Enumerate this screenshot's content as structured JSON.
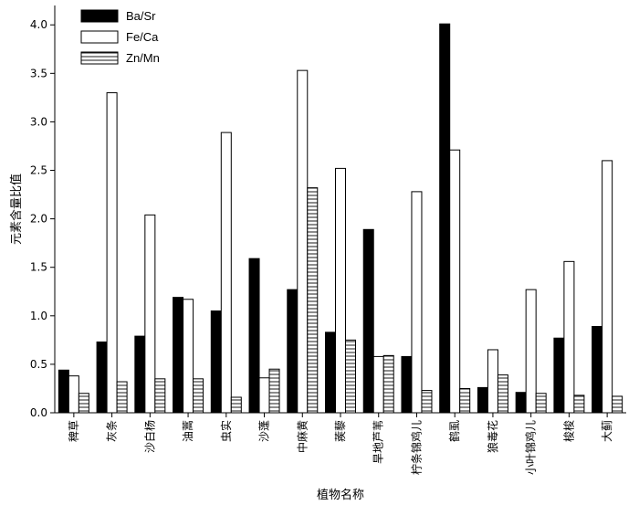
{
  "chart_data": {
    "type": "bar",
    "title": "",
    "xlabel": "植物名称",
    "ylabel": "元素含量比值",
    "ylim": [
      0,
      4.2
    ],
    "yticks": [
      "0.0",
      "0.5",
      "1.0",
      "1.5",
      "2.0",
      "2.5",
      "3.0",
      "3.5",
      "4.0"
    ],
    "grid": false,
    "legend_position": "top-left",
    "categories": [
      "稗草",
      "灰条",
      "沙白杨",
      "油蒿",
      "虫实",
      "沙蓬",
      "中麻黄",
      "蒺藜",
      "旱地芦苇",
      "柠条锦鸡儿",
      "鹤虱",
      "狼毒花",
      "小叶锦鸡儿",
      "梭梭",
      "大蓟"
    ],
    "series": [
      {
        "name": "Ba/Sr",
        "fill": "solid",
        "values": [
          0.44,
          0.73,
          0.79,
          1.19,
          1.05,
          1.59,
          1.27,
          0.83,
          1.89,
          0.58,
          4.01,
          0.26,
          0.21,
          0.77,
          0.89
        ]
      },
      {
        "name": "Fe/Ca",
        "fill": "open",
        "values": [
          0.38,
          3.3,
          2.04,
          1.17,
          2.89,
          0.36,
          3.53,
          2.52,
          0.58,
          2.28,
          2.71,
          0.65,
          1.27,
          1.56,
          2.6
        ]
      },
      {
        "name": "Zn/Mn",
        "fill": "hatched",
        "values": [
          0.2,
          0.32,
          0.35,
          0.35,
          0.16,
          0.45,
          2.32,
          0.75,
          0.59,
          0.23,
          0.25,
          0.39,
          0.2,
          0.18,
          0.17
        ]
      }
    ]
  }
}
